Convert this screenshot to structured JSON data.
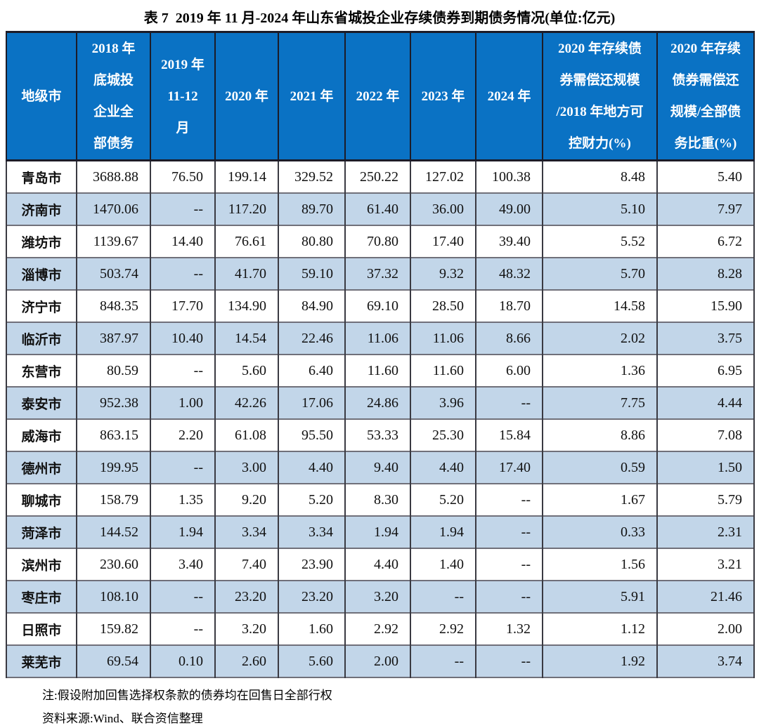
{
  "title": "表 7  2019 年 11 月-2024 年山东省城投企业存续债券到期债务情况(单位:亿元)",
  "header": {
    "columns": [
      "地级市",
      "2018 年\n底城投\n企业全\n部债务",
      "2019 年\n11-12\n月",
      "2020 年",
      "2021 年",
      "2022 年",
      "2023 年",
      "2024 年",
      "2020 年存续债\n券需偿还规模\n/2018 年地方可\n控财力(%)",
      "2020 年存续\n债券需偿还\n规模/全部债\n务比重(%)"
    ]
  },
  "rows": [
    [
      "青岛市",
      "3688.88",
      "76.50",
      "199.14",
      "329.52",
      "250.22",
      "127.02",
      "100.38",
      "8.48",
      "5.40"
    ],
    [
      "济南市",
      "1470.06",
      "--",
      "117.20",
      "89.70",
      "61.40",
      "36.00",
      "49.00",
      "5.10",
      "7.97"
    ],
    [
      "潍坊市",
      "1139.67",
      "14.40",
      "76.61",
      "80.80",
      "70.80",
      "17.40",
      "39.40",
      "5.52",
      "6.72"
    ],
    [
      "淄博市",
      "503.74",
      "--",
      "41.70",
      "59.10",
      "37.32",
      "9.32",
      "48.32",
      "5.70",
      "8.28"
    ],
    [
      "济宁市",
      "848.35",
      "17.70",
      "134.90",
      "84.90",
      "69.10",
      "28.50",
      "18.70",
      "14.58",
      "15.90"
    ],
    [
      "临沂市",
      "387.97",
      "10.40",
      "14.54",
      "22.46",
      "11.06",
      "11.06",
      "8.66",
      "2.02",
      "3.75"
    ],
    [
      "东营市",
      "80.59",
      "--",
      "5.60",
      "6.40",
      "11.60",
      "11.60",
      "6.00",
      "1.36",
      "6.95"
    ],
    [
      "泰安市",
      "952.38",
      "1.00",
      "42.26",
      "17.06",
      "24.86",
      "3.96",
      "--",
      "7.75",
      "4.44"
    ],
    [
      "威海市",
      "863.15",
      "2.20",
      "61.08",
      "95.50",
      "53.33",
      "25.30",
      "15.84",
      "8.86",
      "7.08"
    ],
    [
      "德州市",
      "199.95",
      "--",
      "3.00",
      "4.40",
      "9.40",
      "4.40",
      "17.40",
      "0.59",
      "1.50"
    ],
    [
      "聊城市",
      "158.79",
      "1.35",
      "9.20",
      "5.20",
      "8.30",
      "5.20",
      "--",
      "1.67",
      "5.79"
    ],
    [
      "菏泽市",
      "144.52",
      "1.94",
      "3.34",
      "3.34",
      "1.94",
      "1.94",
      "--",
      "0.33",
      "2.31"
    ],
    [
      "滨州市",
      "230.60",
      "3.40",
      "7.40",
      "23.90",
      "4.40",
      "1.40",
      "--",
      "1.56",
      "3.21"
    ],
    [
      "枣庄市",
      "108.10",
      "--",
      "23.20",
      "23.20",
      "3.20",
      "--",
      "--",
      "5.91",
      "21.46"
    ],
    [
      "日照市",
      "159.82",
      "--",
      "3.20",
      "1.60",
      "2.92",
      "2.92",
      "1.32",
      "1.12",
      "2.00"
    ],
    [
      "莱芜市",
      "69.54",
      "0.10",
      "2.60",
      "5.60",
      "2.00",
      "--",
      "--",
      "1.92",
      "3.74"
    ]
  ],
  "notes": {
    "note": "注:假设附加回售选择权条款的债券均在回售日全部行权",
    "source": "资料来源:Wind、联合资信整理"
  },
  "colors": {
    "header_bg": "#0a72c4",
    "row_alt_bg": "#c2d6e9",
    "header_text": "#ffffff",
    "body_text": "#111111"
  }
}
